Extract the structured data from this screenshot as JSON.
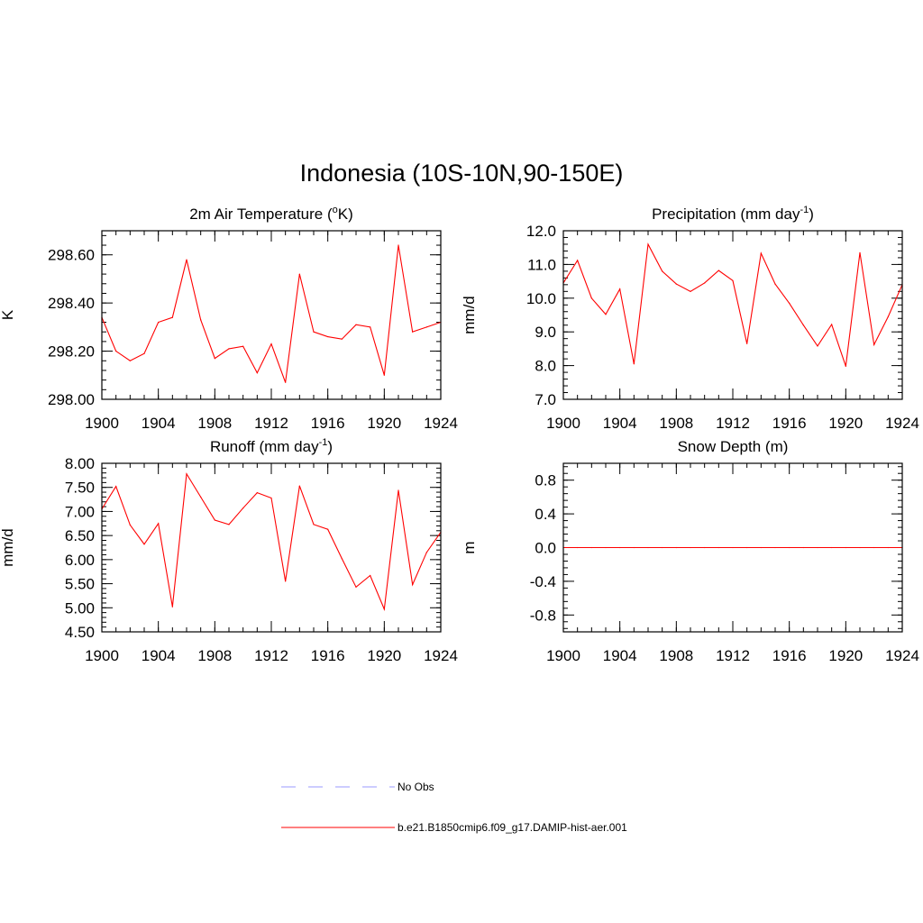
{
  "figure": {
    "title": "Indonesia (10S-10N,90-150E)"
  },
  "legend": {
    "items": [
      {
        "label": "No Obs",
        "color": "#9999ff",
        "style": "dashed"
      },
      {
        "label": "b.e21.B1850cmip6.f09_g17.DAMIP-hist-aer.001",
        "color": "#ff0000",
        "style": "solid"
      }
    ]
  },
  "chart_data": [
    {
      "id": "temp",
      "type": "line",
      "title": "2m Air Temperature (°K)",
      "title_base": "2m Air Temperature (",
      "title_sup": "o",
      "title_tail": "K)",
      "xlabel": "",
      "ylabel": "K",
      "xlim": [
        1900,
        1924
      ],
      "ylim": [
        298.0,
        298.7
      ],
      "x_ticks": [
        "1900",
        "1904",
        "1908",
        "1912",
        "1916",
        "1920",
        "1924"
      ],
      "y_ticks": [
        "298.00",
        "298.20",
        "298.40",
        "298.60"
      ],
      "grid": false,
      "series": [
        {
          "name": "b.e21.B1850cmip6.f09_g17.DAMIP-hist-aer.001",
          "color": "#ff0000",
          "x": [
            1900,
            1901,
            1902,
            1903,
            1904,
            1905,
            1906,
            1907,
            1908,
            1909,
            1910,
            1911,
            1912,
            1913,
            1914,
            1915,
            1916,
            1917,
            1918,
            1919,
            1920,
            1921,
            1922,
            1923,
            1924
          ],
          "y": [
            298.34,
            298.2,
            298.16,
            298.19,
            298.32,
            298.34,
            298.58,
            298.33,
            298.17,
            298.21,
            298.22,
            298.11,
            298.23,
            298.07,
            298.52,
            298.28,
            298.26,
            298.25,
            298.31,
            298.3,
            298.1,
            298.64,
            298.28,
            298.3,
            298.32
          ]
        }
      ]
    },
    {
      "id": "precip",
      "type": "line",
      "title": "Precipitation (mm day-1)",
      "title_base": "Precipitation (mm day",
      "title_sup": "-1",
      "title_tail": ")",
      "xlabel": "",
      "ylabel": "mm/d",
      "xlim": [
        1900,
        1924
      ],
      "ylim": [
        7.0,
        12.0
      ],
      "x_ticks": [
        "1900",
        "1904",
        "1908",
        "1912",
        "1916",
        "1920",
        "1924"
      ],
      "y_ticks": [
        "7.0",
        "8.0",
        "9.0",
        "10.0",
        "11.0",
        "12.0"
      ],
      "grid": false,
      "series": [
        {
          "name": "b.e21.B1850cmip6.f09_g17.DAMIP-hist-aer.001",
          "color": "#ff0000",
          "x": [
            1900,
            1901,
            1902,
            1903,
            1904,
            1905,
            1906,
            1907,
            1908,
            1909,
            1910,
            1911,
            1912,
            1913,
            1914,
            1915,
            1916,
            1917,
            1918,
            1919,
            1920,
            1921,
            1922,
            1923,
            1924
          ],
          "y": [
            10.45,
            11.12,
            10.0,
            9.52,
            10.27,
            8.05,
            11.6,
            10.8,
            10.42,
            10.2,
            10.45,
            10.82,
            10.52,
            8.65,
            11.33,
            10.42,
            9.85,
            9.2,
            8.58,
            9.22,
            7.98,
            11.35,
            8.62,
            9.45,
            10.4
          ]
        }
      ]
    },
    {
      "id": "runoff",
      "type": "line",
      "title": "Runoff (mm day-1)",
      "title_base": "Runoff (mm day",
      "title_sup": "-1",
      "title_tail": ")",
      "xlabel": "",
      "ylabel": "mm/d",
      "xlim": [
        1900,
        1924
      ],
      "ylim": [
        4.5,
        8.0
      ],
      "x_ticks": [
        "1900",
        "1904",
        "1908",
        "1912",
        "1916",
        "1920",
        "1924"
      ],
      "y_ticks": [
        "4.50",
        "5.00",
        "5.50",
        "6.00",
        "6.50",
        "7.00",
        "7.50",
        "8.00"
      ],
      "grid": false,
      "series": [
        {
          "name": "b.e21.B1850cmip6.f09_g17.DAMIP-hist-aer.001",
          "color": "#ff0000",
          "x": [
            1900,
            1901,
            1902,
            1903,
            1904,
            1905,
            1906,
            1907,
            1908,
            1909,
            1910,
            1911,
            1912,
            1913,
            1914,
            1915,
            1916,
            1917,
            1918,
            1919,
            1920,
            1921,
            1922,
            1923,
            1924
          ],
          "y": [
            7.05,
            7.52,
            6.72,
            6.32,
            6.75,
            5.02,
            7.78,
            7.3,
            6.82,
            6.73,
            7.07,
            7.39,
            7.28,
            5.55,
            7.53,
            6.73,
            6.63,
            6.02,
            5.43,
            5.67,
            4.97,
            7.44,
            5.48,
            6.15,
            6.57
          ]
        }
      ]
    },
    {
      "id": "snow",
      "type": "line",
      "title": "Snow Depth (m)",
      "title_base": "Snow Depth (m)",
      "title_sup": "",
      "title_tail": "",
      "xlabel": "",
      "ylabel": "m",
      "xlim": [
        1900,
        1924
      ],
      "ylim": [
        -1.0,
        1.0
      ],
      "x_ticks": [
        "1900",
        "1904",
        "1908",
        "1912",
        "1916",
        "1920",
        "1924"
      ],
      "y_ticks": [
        "-0.8",
        "-0.4",
        "0.0",
        "0.4",
        "0.8"
      ],
      "grid": false,
      "series": [
        {
          "name": "b.e21.B1850cmip6.f09_g17.DAMIP-hist-aer.001",
          "color": "#ff0000",
          "x": [
            1900,
            1901,
            1902,
            1903,
            1904,
            1905,
            1906,
            1907,
            1908,
            1909,
            1910,
            1911,
            1912,
            1913,
            1914,
            1915,
            1916,
            1917,
            1918,
            1919,
            1920,
            1921,
            1922,
            1923,
            1924
          ],
          "y": [
            0,
            0,
            0,
            0,
            0,
            0,
            0,
            0,
            0,
            0,
            0,
            0,
            0,
            0,
            0,
            0,
            0,
            0,
            0,
            0,
            0,
            0,
            0,
            0,
            0
          ]
        }
      ]
    }
  ]
}
